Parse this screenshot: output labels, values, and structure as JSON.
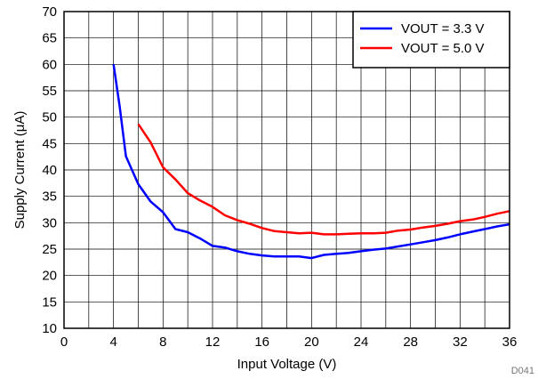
{
  "chart_data": {
    "type": "line",
    "xlabel": "Input Voltage (V)",
    "ylabel": "Supply Current (μA)",
    "xlim": [
      0,
      36
    ],
    "ylim": [
      10,
      70
    ],
    "x_ticks": [
      "0",
      "4",
      "8",
      "12",
      "16",
      "20",
      "24",
      "28",
      "32",
      "36"
    ],
    "y_ticks": [
      "10",
      "15",
      "20",
      "25",
      "30",
      "35",
      "40",
      "45",
      "50",
      "55",
      "60",
      "65",
      "70"
    ],
    "grid": true,
    "legend_position": "top-right",
    "figure_id": "D041",
    "series": [
      {
        "name": "VOUT = 3.3 V",
        "color": "#0000ff",
        "points": [
          [
            4.0,
            60.0
          ],
          [
            4.5,
            52.0
          ],
          [
            5.0,
            42.6
          ],
          [
            6.0,
            37.3
          ],
          [
            7.0,
            34.0
          ],
          [
            8.0,
            32.0
          ],
          [
            9.0,
            28.8
          ],
          [
            10.0,
            28.2
          ],
          [
            11.0,
            27.0
          ],
          [
            12.0,
            25.6
          ],
          [
            13.0,
            25.3
          ],
          [
            14.0,
            24.6
          ],
          [
            15.0,
            24.1
          ],
          [
            16.0,
            23.8
          ],
          [
            17.0,
            23.6
          ],
          [
            18.0,
            23.6
          ],
          [
            19.0,
            23.6
          ],
          [
            20.0,
            23.3
          ],
          [
            21.0,
            23.9
          ],
          [
            22.0,
            24.1
          ],
          [
            23.0,
            24.3
          ],
          [
            24.0,
            24.6
          ],
          [
            25.0,
            24.9
          ],
          [
            26.0,
            25.1
          ],
          [
            27.0,
            25.5
          ],
          [
            28.0,
            25.9
          ],
          [
            29.0,
            26.3
          ],
          [
            30.0,
            26.7
          ],
          [
            31.0,
            27.2
          ],
          [
            32.0,
            27.8
          ],
          [
            33.0,
            28.3
          ],
          [
            34.0,
            28.8
          ],
          [
            35.0,
            29.3
          ],
          [
            36.0,
            29.7
          ]
        ]
      },
      {
        "name": "VOUT = 5.0 V",
        "color": "#ff0000",
        "points": [
          [
            6.0,
            48.7
          ],
          [
            7.0,
            45.2
          ],
          [
            8.0,
            40.5
          ],
          [
            9.0,
            38.2
          ],
          [
            10.0,
            35.6
          ],
          [
            11.0,
            34.2
          ],
          [
            12.0,
            33.0
          ],
          [
            13.0,
            31.4
          ],
          [
            14.0,
            30.5
          ],
          [
            15.0,
            29.8
          ],
          [
            16.0,
            29.0
          ],
          [
            17.0,
            28.4
          ],
          [
            18.0,
            28.2
          ],
          [
            19.0,
            28.0
          ],
          [
            20.0,
            28.1
          ],
          [
            21.0,
            27.8
          ],
          [
            22.0,
            27.8
          ],
          [
            23.0,
            27.9
          ],
          [
            24.0,
            28.0
          ],
          [
            25.0,
            28.0
          ],
          [
            26.0,
            28.1
          ],
          [
            27.0,
            28.5
          ],
          [
            28.0,
            28.7
          ],
          [
            29.0,
            29.1
          ],
          [
            30.0,
            29.4
          ],
          [
            31.0,
            29.8
          ],
          [
            32.0,
            30.3
          ],
          [
            33.0,
            30.6
          ],
          [
            34.0,
            31.1
          ],
          [
            35.0,
            31.7
          ],
          [
            36.0,
            32.2
          ]
        ]
      }
    ]
  }
}
